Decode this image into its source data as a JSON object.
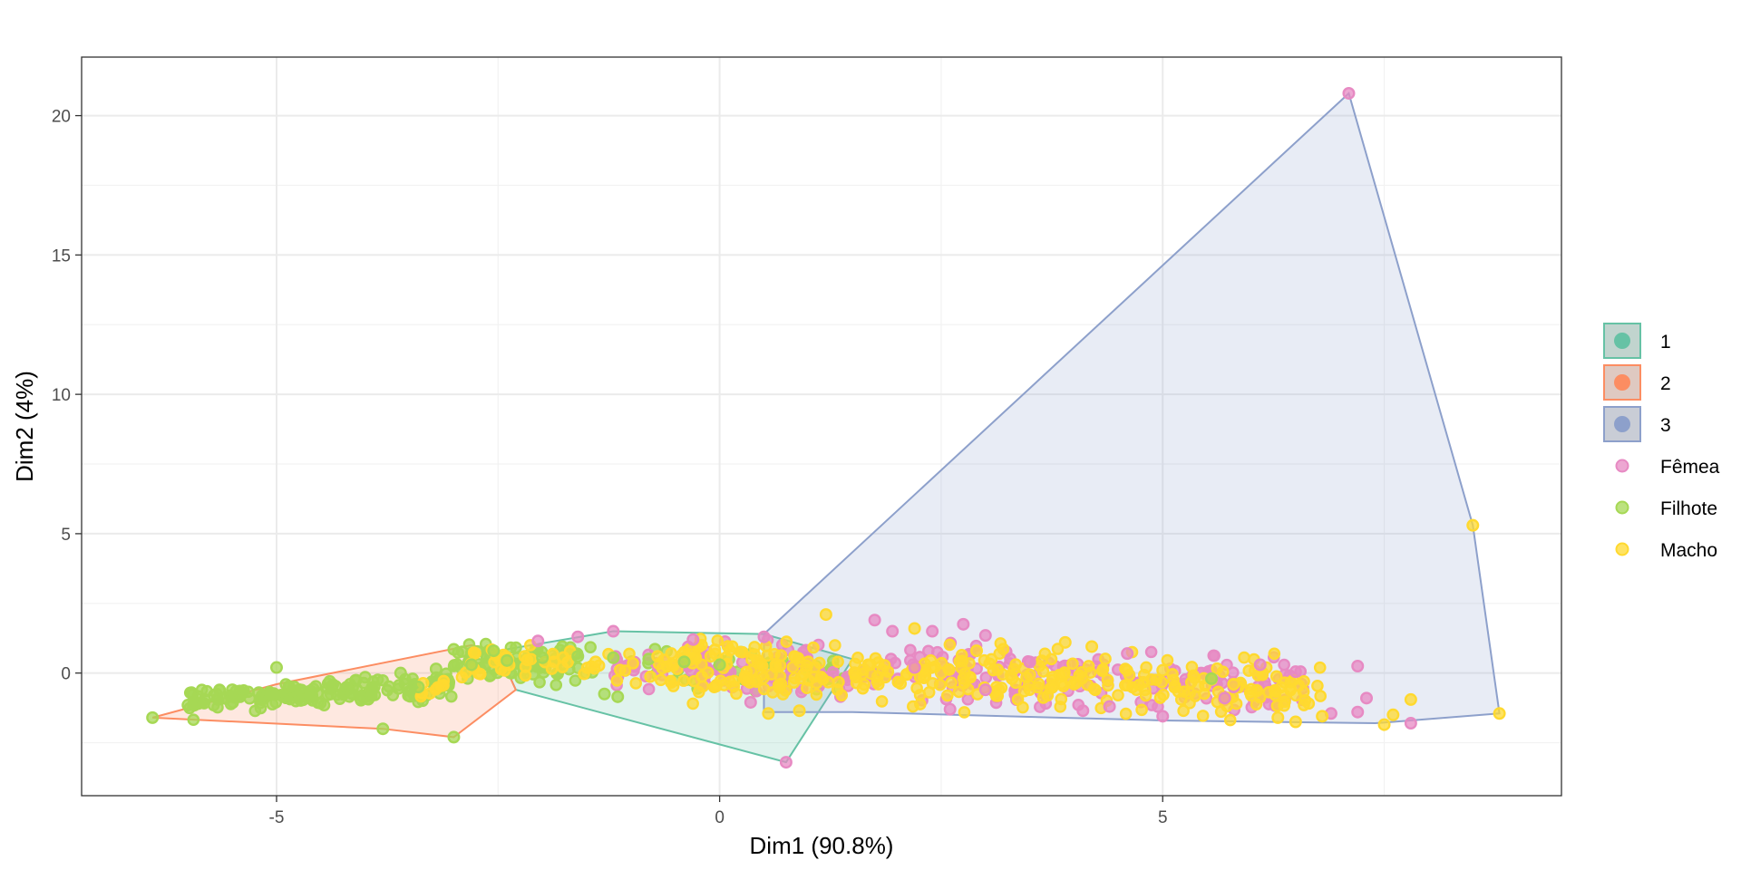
{
  "chart_data": {
    "type": "scatter",
    "title": "",
    "xlabel": "Dim1 (90.8%)",
    "ylabel": "Dim2 (4%)",
    "xlim": [
      -7.2,
      9.5
    ],
    "ylim": [
      -4.4,
      22.1
    ],
    "x_ticks": [
      -5,
      0,
      5
    ],
    "x_tick_labels": [
      "-5",
      "0",
      "5"
    ],
    "y_ticks": [
      0,
      5,
      10,
      15,
      20
    ],
    "y_tick_labels": [
      "0",
      "5",
      "10",
      "15",
      "20"
    ],
    "grid": true,
    "legend_position": "right",
    "clusters": [
      {
        "name": "1",
        "color": "#66c2a5",
        "hull": [
          [
            -2.5,
            0.8
          ],
          [
            -1.2,
            1.5
          ],
          [
            0.5,
            1.4
          ],
          [
            1.5,
            0.5
          ],
          [
            0.75,
            -3.2
          ],
          [
            -2.3,
            -0.6
          ]
        ]
      },
      {
        "name": "2",
        "color": "#fc8d62",
        "hull": [
          [
            -6.4,
            -1.6
          ],
          [
            -5.0,
            -0.4
          ],
          [
            -2.8,
            1.0
          ],
          [
            -2.5,
            0.8
          ],
          [
            -2.3,
            -0.6
          ],
          [
            -3.0,
            -2.3
          ],
          [
            -3.8,
            -2.0
          ]
        ]
      },
      {
        "name": "3",
        "color": "#8da0cb",
        "hull": [
          [
            0.5,
            1.4
          ],
          [
            7.1,
            20.8
          ],
          [
            8.5,
            5.3
          ],
          [
            8.8,
            -1.45
          ],
          [
            7.4,
            -1.8
          ],
          [
            5.0,
            -1.7
          ],
          [
            1.5,
            -1.4
          ],
          [
            0.5,
            -1.4
          ]
        ]
      }
    ],
    "groups": [
      {
        "name": "Fêmea",
        "color": "#e78ac3",
        "points": [
          [
            7.1,
            20.8
          ],
          [
            0.75,
            -3.2
          ],
          [
            7.2,
            0.25
          ],
          [
            7.3,
            -0.9
          ],
          [
            7.2,
            -1.4
          ],
          [
            6.9,
            -1.45
          ],
          [
            7.8,
            -1.8
          ],
          [
            5.0,
            -1.55
          ],
          [
            6.5,
            0.05
          ],
          [
            1.75,
            1.9
          ],
          [
            2.75,
            1.75
          ],
          [
            3.0,
            1.35
          ],
          [
            1.95,
            1.5
          ],
          [
            2.4,
            1.5
          ],
          [
            -1.2,
            1.5
          ],
          [
            -1.6,
            1.3
          ],
          [
            -2.05,
            1.15
          ],
          [
            0.5,
            1.3
          ],
          [
            -0.3,
            1.2
          ],
          [
            2.6,
            -1.3
          ],
          [
            4.1,
            -1.35
          ],
          [
            4.4,
            -1.2
          ],
          [
            5.7,
            -0.9
          ],
          [
            0.35,
            -1.05
          ],
          [
            3.5,
            0.4
          ],
          [
            4.6,
            0.7
          ],
          [
            6.1,
            0.3
          ],
          [
            5.8,
            -0.5
          ],
          [
            2.2,
            0.2
          ],
          [
            3.0,
            -0.6
          ]
        ]
      },
      {
        "name": "Filhote",
        "color": "#a6d854",
        "points": [
          [
            -6.4,
            -1.6
          ],
          [
            -3.8,
            -2.0
          ],
          [
            -3.0,
            -2.3
          ],
          [
            -5.0,
            0.2
          ],
          [
            -3.0,
            0.85
          ],
          [
            -2.55,
            0.8
          ],
          [
            -1.15,
            -0.85
          ],
          [
            -1.3,
            -0.75
          ],
          [
            -6.0,
            -1.15
          ],
          [
            -5.6,
            -0.9
          ],
          [
            -5.2,
            -0.7
          ],
          [
            -4.8,
            -0.5
          ],
          [
            -4.4,
            -0.3
          ],
          [
            -4.0,
            -0.15
          ],
          [
            -3.6,
            0.0
          ],
          [
            -3.2,
            0.15
          ],
          [
            -2.8,
            0.3
          ],
          [
            -2.4,
            0.45
          ],
          [
            -2.0,
            0.55
          ],
          [
            -1.6,
            0.6
          ],
          [
            -1.2,
            0.55
          ],
          [
            -0.8,
            0.5
          ],
          [
            -0.4,
            0.4
          ],
          [
            0.0,
            0.3
          ],
          [
            5.55,
            -0.2
          ],
          [
            -5.5,
            -0.6
          ],
          [
            -4.6,
            -0.8
          ],
          [
            -3.4,
            -0.5
          ]
        ]
      },
      {
        "name": "Macho",
        "color": "#ffd92f",
        "points": [
          [
            8.5,
            5.3
          ],
          [
            8.8,
            -1.45
          ],
          [
            7.5,
            -1.85
          ],
          [
            7.6,
            -1.5
          ],
          [
            7.8,
            -0.95
          ],
          [
            6.5,
            -1.75
          ],
          [
            6.3,
            -1.6
          ],
          [
            6.8,
            -1.55
          ],
          [
            5.0,
            0.1
          ],
          [
            5.8,
            -0.4
          ],
          [
            1.2,
            2.1
          ],
          [
            2.2,
            1.6
          ],
          [
            3.9,
            1.1
          ],
          [
            4.2,
            0.95
          ],
          [
            0.55,
            -1.45
          ],
          [
            0.9,
            -1.35
          ],
          [
            -0.1,
            0.6
          ],
          [
            0.3,
            -0.25
          ],
          [
            1.0,
            0.4
          ],
          [
            1.7,
            0.3
          ],
          [
            2.5,
            0.0
          ],
          [
            3.3,
            -0.2
          ],
          [
            4.0,
            -0.4
          ],
          [
            4.8,
            -0.6
          ],
          [
            5.4,
            -0.5
          ],
          [
            6.0,
            -0.8
          ],
          [
            -2.2,
            0.6
          ],
          [
            -1.4,
            0.4
          ],
          [
            -0.7,
            0.6
          ],
          [
            2.9,
            0.8
          ]
        ]
      }
    ]
  },
  "legend": {
    "fill_items": [
      {
        "label": "1",
        "color": "#66c2a5"
      },
      {
        "label": "2",
        "color": "#fc8d62"
      },
      {
        "label": "3",
        "color": "#8da0cb"
      }
    ],
    "point_items": [
      {
        "label": "Fêmea",
        "color": "#e78ac3"
      },
      {
        "label": "Filhote",
        "color": "#a6d854"
      },
      {
        "label": "Macho",
        "color": "#ffd92f"
      }
    ]
  }
}
